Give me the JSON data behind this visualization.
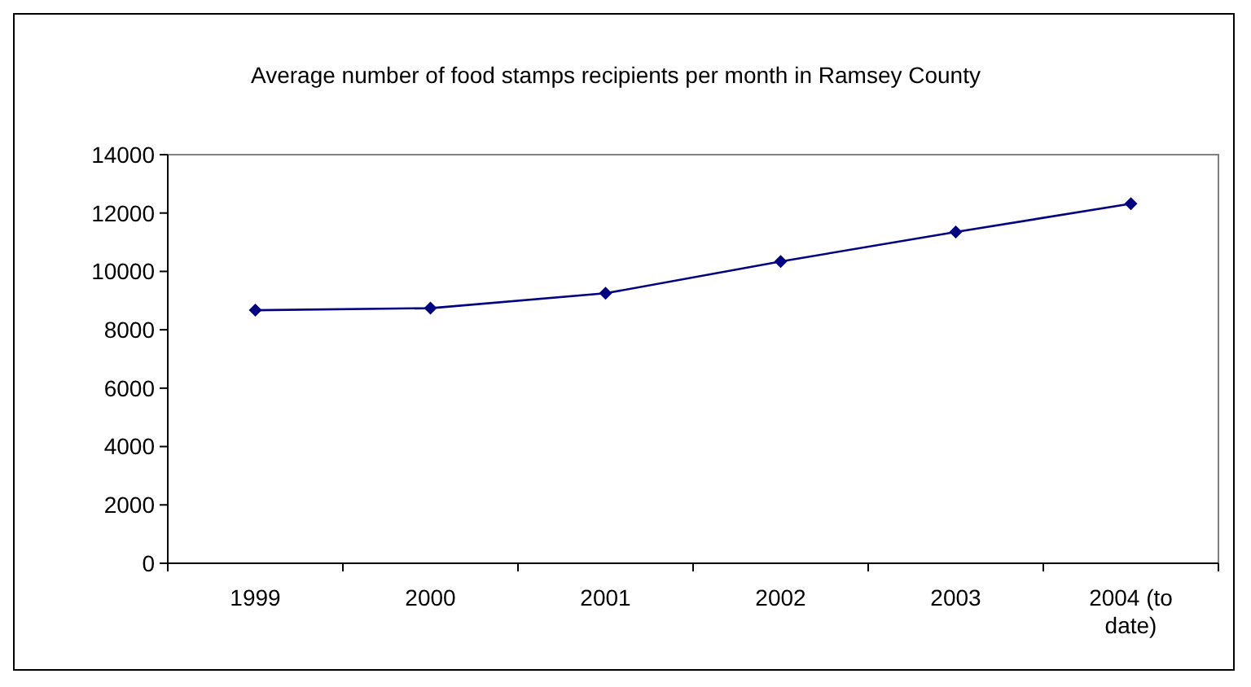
{
  "chart_data": {
    "type": "line",
    "title": "Average number of food stamps recipients per month in Ramsey County",
    "categories": [
      "1999",
      "2000",
      "2001",
      "2002",
      "2003",
      "2004 (to date)"
    ],
    "series": [
      {
        "color": "#000080",
        "values": [
          8670,
          8740,
          9250,
          10340,
          11350,
          12320
        ]
      }
    ],
    "ylim": [
      0,
      14000
    ],
    "yticks": [
      0,
      2000,
      4000,
      6000,
      8000,
      10000,
      12000,
      14000
    ],
    "grid": false,
    "marker": "diamond",
    "line_style": "solid"
  }
}
